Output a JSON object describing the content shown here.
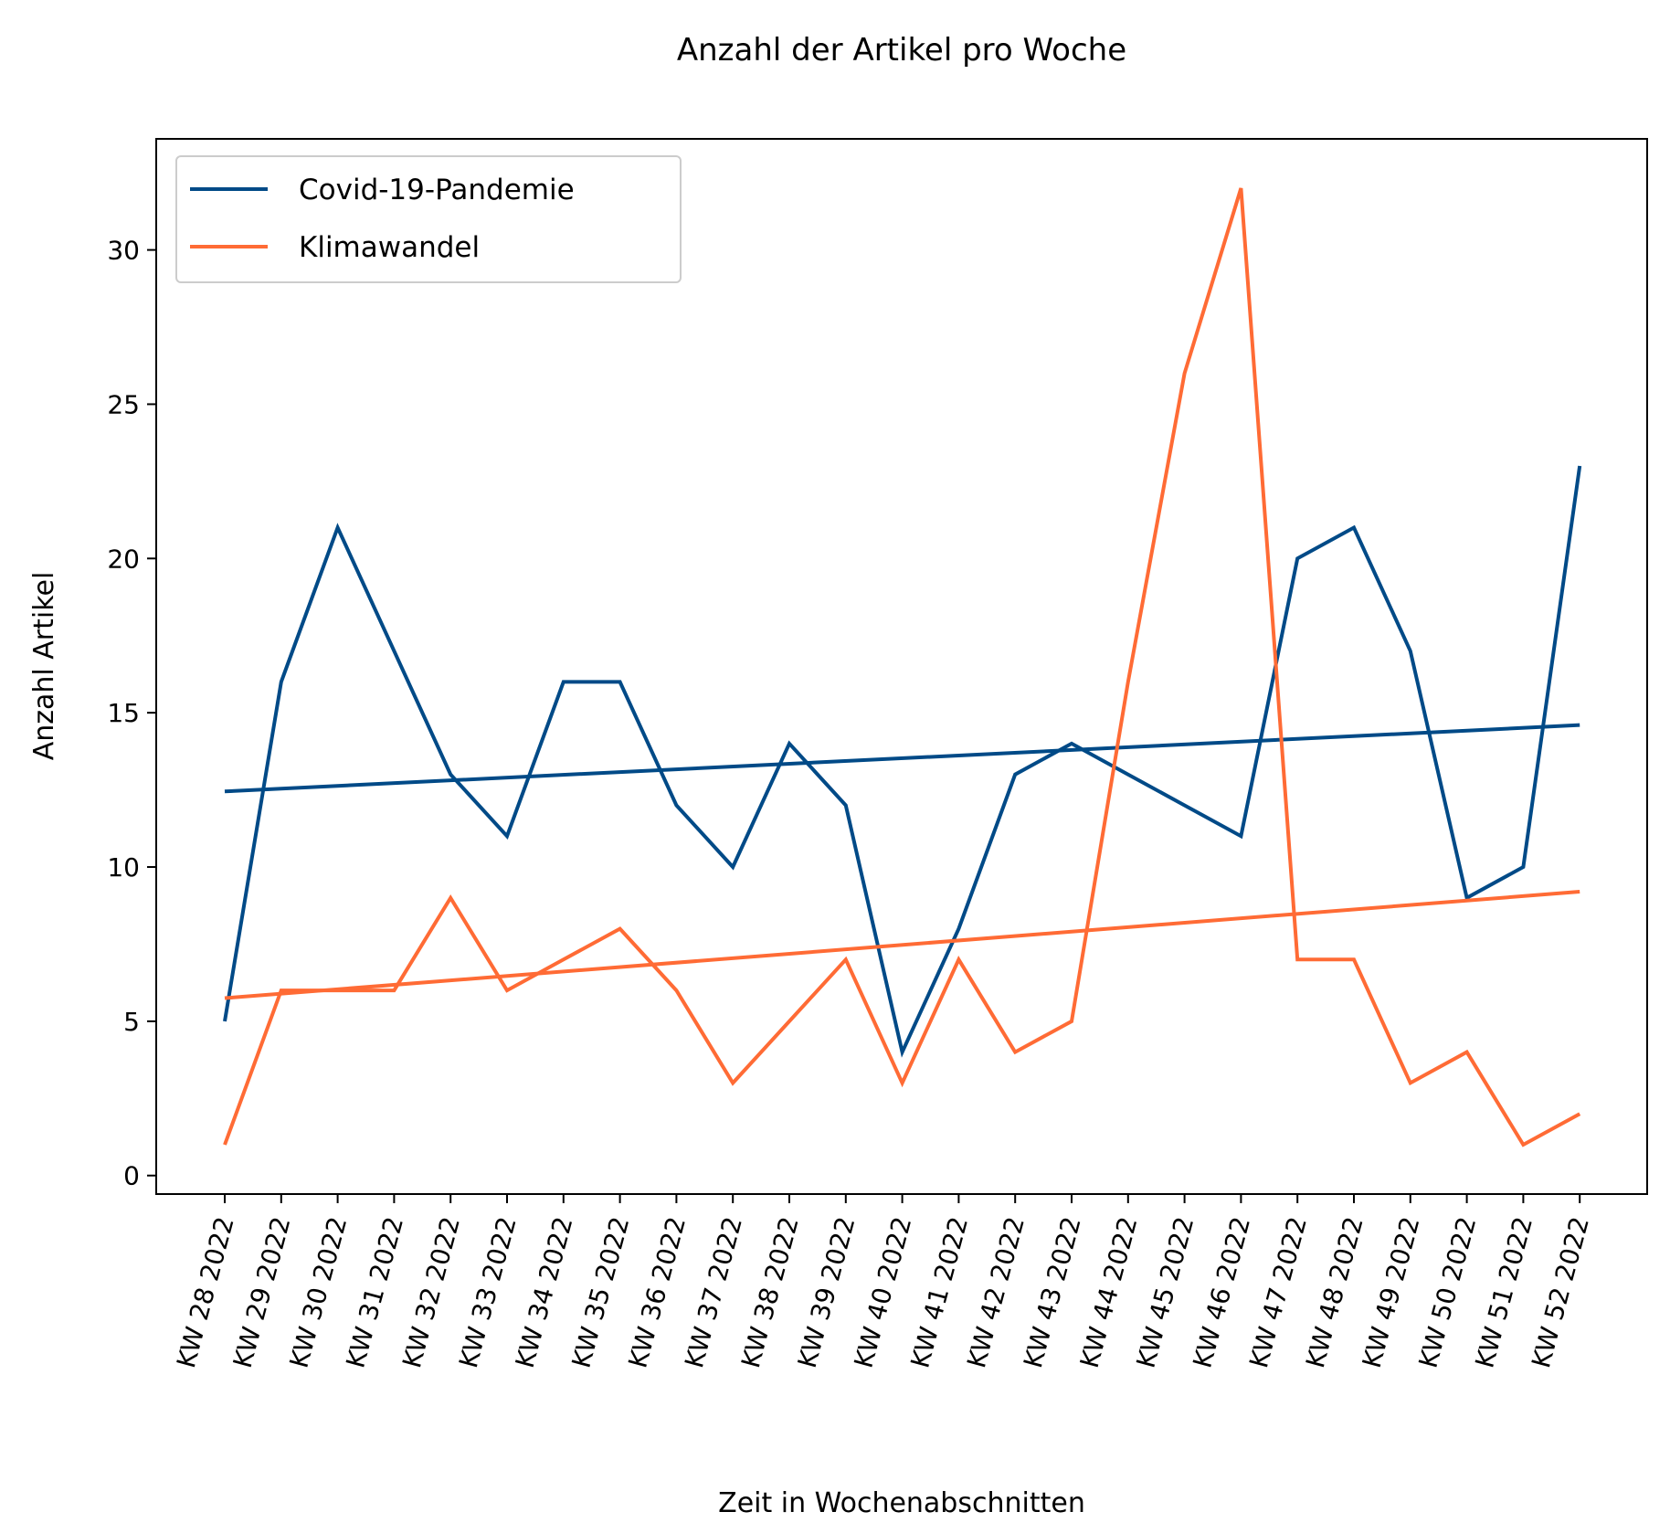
{
  "chart_data": {
    "type": "line",
    "title": "Anzahl der Artikel pro Woche",
    "xlabel": "Zeit in Wochenabschnitten",
    "ylabel": "Anzahl Artikel",
    "categories": [
      "KW 28 2022",
      "KW 29 2022",
      "KW 30 2022",
      "KW 31 2022",
      "KW 32 2022",
      "KW 33 2022",
      "KW 34 2022",
      "KW 35 2022",
      "KW 36 2022",
      "KW 37 2022",
      "KW 38 2022",
      "KW 39 2022",
      "KW 40 2022",
      "KW 41 2022",
      "KW 42 2022",
      "KW 43 2022",
      "KW 44 2022",
      "KW 45 2022",
      "KW 46 2022",
      "KW 47 2022",
      "KW 48 2022",
      "KW 49 2022",
      "KW 50 2022",
      "KW 51 2022",
      "KW 52 2022"
    ],
    "ylim": [
      -0.6,
      33.6
    ],
    "yticks": [
      0,
      5,
      10,
      15,
      20,
      25,
      30
    ],
    "grid": false,
    "legend_position": "top-left",
    "series": [
      {
        "name": "Covid-19-Pandemie",
        "color": "#004a87",
        "values": [
          5,
          16,
          21,
          17,
          13,
          11,
          16,
          16,
          12,
          10,
          14,
          12,
          4,
          8,
          13,
          14,
          13,
          12,
          11,
          20,
          21,
          17,
          9,
          10,
          23
        ],
        "trend": [
          12.45,
          14.6
        ]
      },
      {
        "name": "Klimawandel",
        "color": "#ff6b35",
        "values": [
          1,
          6,
          6,
          6,
          9,
          6,
          7,
          8,
          6,
          3,
          5,
          7,
          3,
          7,
          4,
          5,
          16,
          26,
          32,
          7,
          7,
          3,
          4,
          1,
          2
        ],
        "trend": [
          5.75,
          9.2
        ]
      }
    ]
  }
}
